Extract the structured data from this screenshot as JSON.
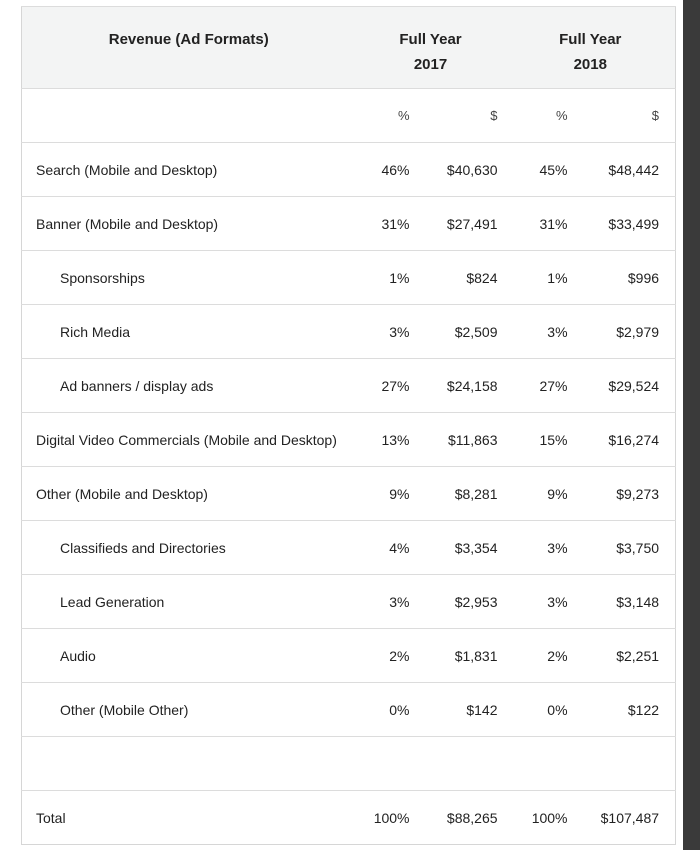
{
  "header": {
    "title": "Revenue (Ad Formats)",
    "col_2017": [
      "Full Year",
      "2017"
    ],
    "col_2018": [
      "Full Year",
      "2018"
    ]
  },
  "units": {
    "pct": "%",
    "usd": "$"
  },
  "rows": [
    {
      "label": "Search (Mobile and Desktop)",
      "sub": false,
      "p17": "46%",
      "d17": "$40,630",
      "p18": "45%",
      "d18": "$48,442"
    },
    {
      "label": "Banner (Mobile and Desktop)",
      "sub": false,
      "p17": "31%",
      "d17": "$27,491",
      "p18": "31%",
      "d18": "$33,499"
    },
    {
      "label": "Sponsorships",
      "sub": true,
      "p17": "1%",
      "d17": "$824",
      "p18": "1%",
      "d18": "$996"
    },
    {
      "label": "Rich Media",
      "sub": true,
      "p17": "3%",
      "d17": "$2,509",
      "p18": "3%",
      "d18": "$2,979"
    },
    {
      "label": "Ad banners / display ads",
      "sub": true,
      "p17": "27%",
      "d17": "$24,158",
      "p18": "27%",
      "d18": "$29,524"
    },
    {
      "label": "Digital Video Commercials (Mobile and Desktop)",
      "sub": false,
      "p17": "13%",
      "d17": "$11,863",
      "p18": "15%",
      "d18": "$16,274"
    },
    {
      "label": "Other (Mobile and Desktop)",
      "sub": false,
      "p17": "9%",
      "d17": "$8,281",
      "p18": "9%",
      "d18": "$9,273"
    },
    {
      "label": "Classifieds and Directories",
      "sub": true,
      "p17": "4%",
      "d17": "$3,354",
      "p18": "3%",
      "d18": "$3,750"
    },
    {
      "label": "Lead Generation",
      "sub": true,
      "p17": "3%",
      "d17": "$2,953",
      "p18": "3%",
      "d18": "$3,148"
    },
    {
      "label": "Audio",
      "sub": true,
      "p17": "2%",
      "d17": "$1,831",
      "p18": "2%",
      "d18": "$2,251"
    },
    {
      "label": "Other (Mobile Other)",
      "sub": true,
      "p17": "0%",
      "d17": "$142",
      "p18": "0%",
      "d18": "$122"
    }
  ],
  "total": {
    "label": "Total",
    "p17": "100%",
    "d17": "$88,265",
    "p18": "100%",
    "d18": "$107,487"
  }
}
